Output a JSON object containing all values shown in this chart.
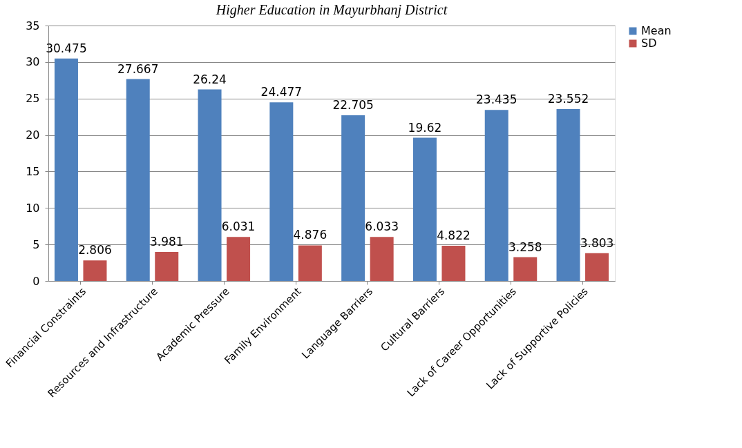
{
  "chart_data": {
    "type": "bar",
    "title": "Higher Education in Mayurbhanj District",
    "categories": [
      "Financial Constraints",
      "Resources and Infrastructure",
      "Academic Pressure",
      "Family Environment",
      "Language Barriers",
      "Cultural Barriers",
      "Lack of Career Opportunities",
      "Lack of Supportive Policies"
    ],
    "series": [
      {
        "name": "Mean",
        "color": "#4f81bd",
        "values": [
          30.475,
          27.667,
          26.24,
          24.477,
          22.705,
          19.62,
          23.435,
          23.552
        ]
      },
      {
        "name": "SD",
        "color": "#c0504d",
        "values": [
          2.806,
          3.981,
          6.031,
          4.876,
          6.033,
          4.822,
          3.258,
          3.803
        ]
      }
    ],
    "ylim": [
      0,
      35
    ],
    "yticks": [
      0,
      5,
      10,
      15,
      20,
      25,
      30,
      35
    ],
    "grid": "y",
    "legend": "right",
    "data_labels": true
  }
}
